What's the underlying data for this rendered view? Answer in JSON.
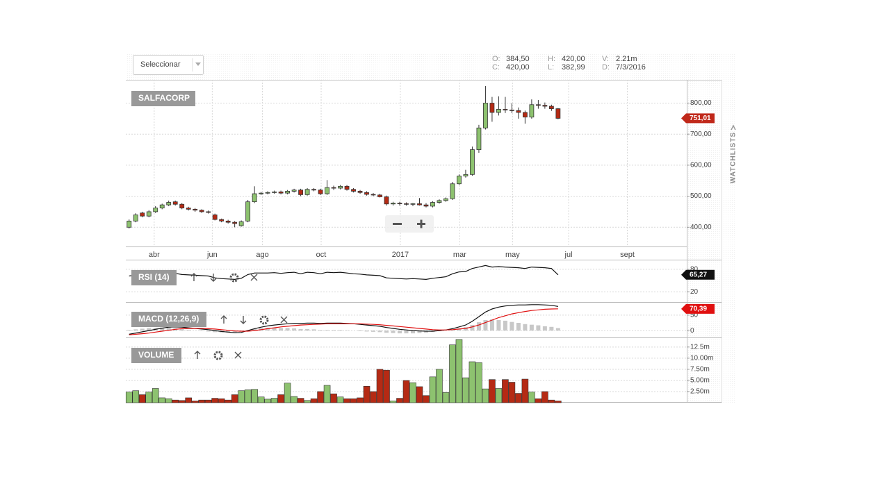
{
  "header": {
    "select": "Seleccionar",
    "stats": [
      {
        "label": "O:",
        "value": "384,50"
      },
      {
        "label": "H:",
        "value": "420,00"
      },
      {
        "label": "V:",
        "value": "2.21m"
      },
      {
        "label": "C:",
        "value": "420,00"
      },
      {
        "label": "L:",
        "value": "382,99"
      },
      {
        "label": "D:",
        "value": "7/3/2016"
      }
    ]
  },
  "watchlists": "WATCHLISTS",
  "chart_data": [
    {
      "type": "candlestick",
      "title": "SALFACORP",
      "up_color": "#8dc26f",
      "down_color": "#b52a14",
      "open": [
        400,
        420,
        446,
        436,
        450,
        462,
        472,
        482,
        474,
        462,
        458,
        455,
        450,
        440,
        425,
        420,
        416,
        405,
        420,
        482,
        508,
        510,
        512,
        514,
        510,
        516,
        520,
        505,
        522,
        520,
        508,
        528,
        526,
        532,
        522,
        516,
        512,
        506,
        504,
        498,
        475,
        478,
        476,
        474,
        476,
        472,
        468,
        480,
        486,
        492,
        540,
        565,
        570,
        650,
        720,
        800,
        770,
        780,
        778,
        776,
        770,
        755,
        795,
        793,
        790,
        782
      ],
      "high": [
        425,
        445,
        450,
        455,
        468,
        476,
        486,
        486,
        478,
        466,
        462,
        458,
        454,
        444,
        428,
        424,
        420,
        422,
        488,
        532,
        514,
        516,
        518,
        518,
        520,
        524,
        524,
        526,
        526,
        524,
        552,
        534,
        536,
        536,
        526,
        520,
        516,
        510,
        508,
        502,
        482,
        482,
        480,
        478,
        494,
        478,
        484,
        490,
        496,
        546,
        570,
        585,
        660,
        730,
        855,
        820,
        822,
        820,
        800,
        786,
        776,
        812,
        810,
        802,
        795,
        784
      ],
      "low": [
        396,
        416,
        432,
        432,
        446,
        458,
        468,
        470,
        458,
        454,
        450,
        446,
        444,
        422,
        416,
        412,
        400,
        402,
        416,
        478,
        504,
        506,
        508,
        506,
        506,
        512,
        500,
        502,
        516,
        504,
        504,
        520,
        522,
        518,
        512,
        508,
        502,
        500,
        496,
        470,
        470,
        470,
        470,
        468,
        470,
        464,
        464,
        476,
        482,
        488,
        536,
        560,
        566,
        640,
        715,
        740,
        760,
        768,
        768,
        750,
        734,
        750,
        782,
        782,
        775,
        748
      ],
      "close": [
        420,
        440,
        436,
        450,
        462,
        472,
        480,
        474,
        462,
        458,
        455,
        450,
        448,
        425,
        420,
        416,
        412,
        418,
        482,
        508,
        510,
        512,
        514,
        510,
        516,
        520,
        505,
        522,
        520,
        508,
        528,
        526,
        532,
        522,
        516,
        512,
        506,
        504,
        498,
        475,
        478,
        476,
        474,
        476,
        472,
        468,
        480,
        486,
        492,
        540,
        565,
        570,
        650,
        720,
        800,
        770,
        780,
        778,
        776,
        770,
        755,
        795,
        793,
        790,
        782,
        751.01
      ],
      "xlim": [
        0,
        85
      ],
      "xticks": [
        {
          "value": 4.3,
          "label": "abr"
        },
        {
          "value": 13.1,
          "label": "jun"
        },
        {
          "value": 20.7,
          "label": "ago"
        },
        {
          "value": 29.6,
          "label": "oct"
        },
        {
          "value": 41.6,
          "label": "2017"
        },
        {
          "value": 50.6,
          "label": "mar"
        },
        {
          "value": 58.6,
          "label": "may"
        },
        {
          "value": 67.1,
          "label": "jul"
        },
        {
          "value": 76,
          "label": "sept"
        }
      ],
      "ylim": [
        338,
        875
      ],
      "yticks": [
        {
          "value": 400,
          "label": "400,00"
        },
        {
          "value": 500,
          "label": "500,00"
        },
        {
          "value": 600,
          "label": "600,00"
        },
        {
          "value": 700,
          "label": "700,00"
        },
        {
          "value": 800,
          "label": "800,00"
        }
      ],
      "grid": true,
      "marker": {
        "value": 751.01,
        "label": "751,01",
        "color": "#c0281a"
      }
    },
    {
      "type": "line",
      "title": "RSI (14)",
      "ylim": [
        0,
        100
      ],
      "yticks": [
        20,
        80
      ],
      "grid": true,
      "series": [
        {
          "color": "#111111",
          "values": [
            62,
            64,
            63,
            66,
            68,
            70,
            71,
            69,
            66,
            65,
            64,
            63,
            62,
            57,
            55,
            54,
            53,
            56,
            66,
            70,
            70,
            70,
            71,
            69,
            71,
            72,
            68,
            72,
            71,
            68,
            72,
            71,
            72,
            70,
            68,
            67,
            65,
            64,
            63,
            57,
            56,
            55,
            54,
            55,
            54,
            53,
            56,
            58,
            60,
            68,
            73,
            74,
            82,
            86,
            90,
            86,
            87,
            86,
            85,
            84,
            82,
            86,
            85,
            84,
            82,
            65.27
          ]
        }
      ],
      "marker": {
        "value": 65.27,
        "label": "65,27",
        "color": "#111111"
      }
    },
    {
      "type": "line",
      "title": "MACD (12,26,9)",
      "ylim": [
        -20,
        88
      ],
      "yticks": [
        0,
        50
      ],
      "grid": true,
      "series": [
        {
          "type": "bar",
          "color": "#c8c8c8",
          "values": [
            2,
            4,
            6,
            8,
            9,
            10,
            10,
            8,
            5,
            2,
            0,
            -2,
            -3,
            -5,
            -6,
            -6,
            -6,
            -4,
            2,
            6,
            8,
            9,
            9,
            8,
            8,
            7,
            5,
            5,
            4,
            2,
            2,
            2,
            2,
            1,
            0,
            -2,
            -3,
            -4,
            -5,
            -7,
            -8,
            -9,
            -9,
            -9,
            -8,
            -7,
            -5,
            -2,
            0,
            3,
            7,
            11,
            18,
            27,
            34,
            36,
            34,
            32,
            28,
            25,
            21,
            19,
            17,
            14,
            12,
            8
          ]
        },
        {
          "color": "#111111",
          "values": [
            -12,
            -8,
            -4,
            0,
            4,
            8,
            11,
            12,
            11,
            9,
            7,
            5,
            3,
            0,
            -3,
            -5,
            -7,
            -6,
            0,
            6,
            11,
            15,
            18,
            20,
            22,
            23,
            23,
            24,
            24,
            23,
            24,
            24,
            24,
            23,
            22,
            20,
            18,
            16,
            14,
            10,
            7,
            4,
            2,
            0,
            -1,
            -2,
            -2,
            0,
            2,
            6,
            12,
            18,
            30,
            45,
            60,
            70,
            76,
            80,
            82,
            83,
            83,
            84,
            84,
            83,
            82,
            78
          ]
        },
        {
          "color": "#e01010",
          "values": [
            -14,
            -12,
            -10,
            -8,
            -5,
            -2,
            1,
            4,
            6,
            7,
            7,
            7,
            6,
            5,
            3,
            1,
            -1,
            -2,
            -2,
            0,
            3,
            6,
            9,
            12,
            14,
            16,
            18,
            19,
            20,
            21,
            22,
            22,
            22,
            22,
            22,
            22,
            21,
            20,
            19,
            17,
            15,
            13,
            11,
            9,
            7,
            5,
            3,
            2,
            2,
            3,
            5,
            7,
            12,
            18,
            26,
            34,
            42,
            48,
            54,
            58,
            62,
            65,
            67,
            69,
            70,
            70.39
          ]
        }
      ],
      "marker": {
        "value": 70.39,
        "label": "70,39",
        "color": "#e01010"
      }
    },
    {
      "type": "bar",
      "title": "VOLUME",
      "up_color": "#8dc26f",
      "down_color": "#b52a14",
      "values": [
        2.4,
        2.7,
        1.8,
        2.4,
        3.2,
        1.1,
        0.9,
        0.6,
        0.5,
        1.1,
        0.4,
        0.6,
        0.6,
        1.0,
        0.9,
        0.6,
        1.8,
        2.7,
        2.9,
        3.0,
        1.3,
        0.8,
        1.0,
        1.8,
        4.4,
        1.4,
        1.0,
        0.5,
        0.9,
        2.5,
        3.9,
        2.0,
        1.3,
        0.9,
        0.9,
        1.1,
        3.7,
        2.5,
        7.5,
        7.3,
        0.4,
        1.0,
        5.0,
        4.5,
        3.6,
        1.6,
        5.8,
        7.5,
        2.3,
        13.0,
        14.2,
        5.6,
        9.2,
        9.0,
        3.1,
        5.2,
        3.2,
        5.2,
        4.6,
        2.1,
        5.3,
        2.4,
        0.9,
        2.5,
        0.6,
        0.4
      ],
      "ylim": [
        0,
        14.5
      ],
      "yticks": [
        {
          "value": 2.5,
          "label": "2.50m"
        },
        {
          "value": 5,
          "label": "5.00m"
        },
        {
          "value": 7.5,
          "label": "7.50m"
        },
        {
          "value": 10,
          "label": "10.00m"
        },
        {
          "value": 12.5,
          "label": "12.5m"
        }
      ],
      "grid": true
    }
  ]
}
